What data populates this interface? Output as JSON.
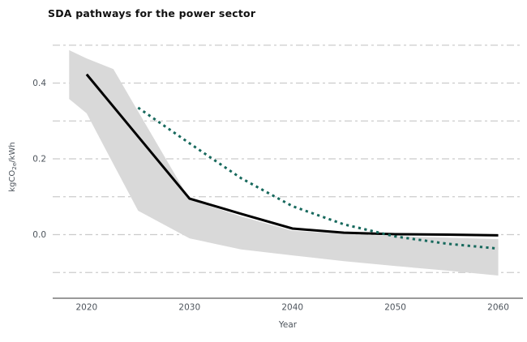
{
  "header": {
    "title": "SDA pathways for the power sector"
  },
  "axes": {
    "x_title": "Year",
    "y_title_prefix": "kgCO",
    "y_title_sub": "2e",
    "y_title_suffix": "/kWh"
  },
  "colors": {
    "background": "#ffffff",
    "title_text": "#111111",
    "axis_text": "#4d545c",
    "gridline": "#cbcbcb",
    "axis_line": "#787878",
    "band_fill": "#d9d9d9",
    "series_black": "#000000",
    "series_teal": "#17695d"
  },
  "chart_data": {
    "type": "line",
    "title": "SDA pathways for the power sector",
    "xlabel": "Year",
    "ylabel": "kgCO2e/kWh",
    "xlim": [
      2016.7,
      2062.4
    ],
    "ylim": [
      -0.168,
      0.523
    ],
    "x_ticks": [
      2020,
      2030,
      2040,
      2050,
      2060
    ],
    "y_ticks": [
      0.0,
      0.2,
      0.4
    ],
    "y_tick_labels": [
      "0.0",
      "0.2",
      "0.4"
    ],
    "gridlines_y": [
      -0.1,
      0.0,
      0.1,
      0.2,
      0.3,
      0.4,
      0.5
    ],
    "grid": "horizontal dashed only, no vertical gridlines",
    "legend": "none",
    "band": {
      "name": "pathway-range-band",
      "fill": "#d9d9d9",
      "x": [
        2018.3,
        2020,
        2022.6,
        2025,
        2030,
        2035,
        2040,
        2045,
        2050,
        2055,
        2060
      ],
      "upper": [
        0.487,
        0.465,
        0.437,
        0.325,
        0.093,
        0.048,
        0.01,
        0.002,
        -0.004,
        -0.008,
        -0.012
      ],
      "lower": [
        0.358,
        0.32,
        0.186,
        0.063,
        -0.01,
        -0.039,
        -0.055,
        -0.07,
        -0.083,
        -0.095,
        -0.108
      ]
    },
    "series": [
      {
        "name": "series-solid-black",
        "style": "solid",
        "color": "#000000",
        "width": 3,
        "x": [
          2020,
          2025,
          2030,
          2035,
          2040,
          2045,
          2050,
          2055,
          2060
        ],
        "y": [
          0.423,
          0.259,
          0.095,
          0.055,
          0.016,
          0.005,
          0.001,
          0.0,
          -0.002
        ]
      },
      {
        "name": "series-dotted-teal",
        "style": "dotted",
        "color": "#17695d",
        "width": 3,
        "x": [
          2025,
          2030,
          2035,
          2040,
          2045,
          2050,
          2055,
          2060
        ],
        "y": [
          0.335,
          0.241,
          0.149,
          0.075,
          0.027,
          -0.005,
          -0.024,
          -0.037
        ]
      }
    ]
  }
}
